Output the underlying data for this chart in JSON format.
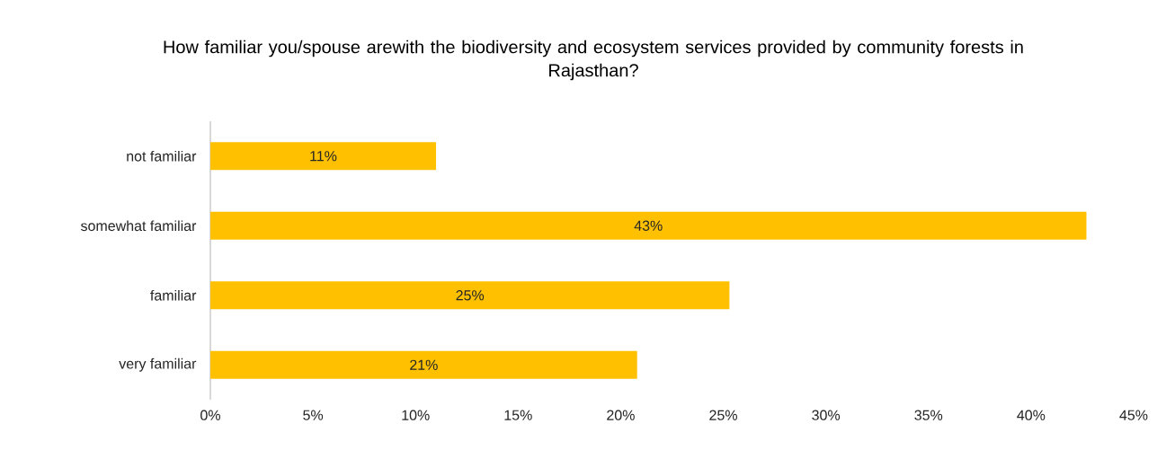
{
  "chart_data": {
    "type": "bar",
    "orientation": "horizontal",
    "title": "How familiar you/spouse arewith the biodiversity and ecosystem services provided by community forests in Rajasthan?",
    "categories": [
      "not familiar",
      "somewhat familiar",
      "familiar",
      "very familiar"
    ],
    "values": [
      11,
      42.7,
      25.3,
      20.8
    ],
    "value_labels": [
      "11%",
      "43%",
      "25%",
      "21%"
    ],
    "color": "#ffc000",
    "xlim": [
      0,
      45
    ],
    "xticks": [
      {
        "value": 0,
        "label": "0%"
      },
      {
        "value": 5,
        "label": "5%"
      },
      {
        "value": 10,
        "label": "10%"
      },
      {
        "value": 15,
        "label": "15%"
      },
      {
        "value": 20,
        "label": "20%"
      },
      {
        "value": 25,
        "label": "25%"
      },
      {
        "value": 30,
        "label": "30%"
      },
      {
        "value": 35,
        "label": "35%"
      },
      {
        "value": 40,
        "label": "40%"
      },
      {
        "value": 45,
        "label": "45%"
      }
    ]
  }
}
